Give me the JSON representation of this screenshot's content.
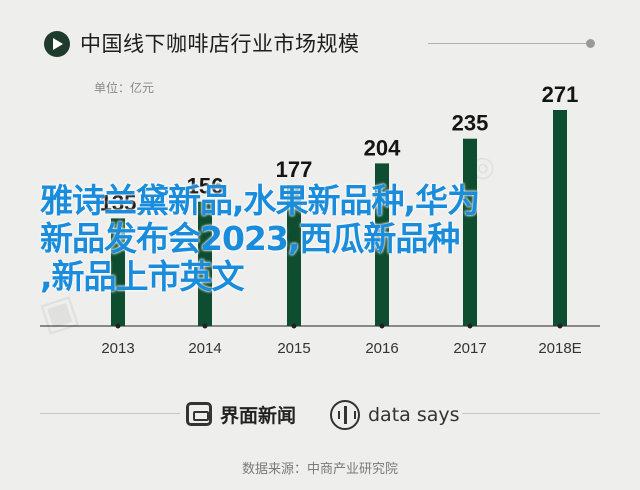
{
  "title": "中国线下咖啡店行业市场规模",
  "unit": "单位：亿元",
  "chart_data": {
    "type": "bar",
    "categories": [
      "2013",
      "2014",
      "2015",
      "2016",
      "2017",
      "2018E"
    ],
    "values": [
      135,
      156,
      177,
      204,
      235,
      271
    ],
    "ylim": [
      0,
      271
    ],
    "bar_color": "#0f4d31",
    "grid": false,
    "legend": "none"
  },
  "overlay_text": {
    "line1": "雅诗兰黛新品,水果新品种,华为",
    "line2": "新品发布会2023,西瓜新品种",
    "line3": ",新品上市英文"
  },
  "footer": {
    "brand": "界面新闻",
    "data_says": "data says",
    "source": "数据来源：中商产业研究院"
  },
  "colors": {
    "background": "#eeeeed",
    "bar": "#0f4d31",
    "overlay_text": "#1a8cdc"
  }
}
